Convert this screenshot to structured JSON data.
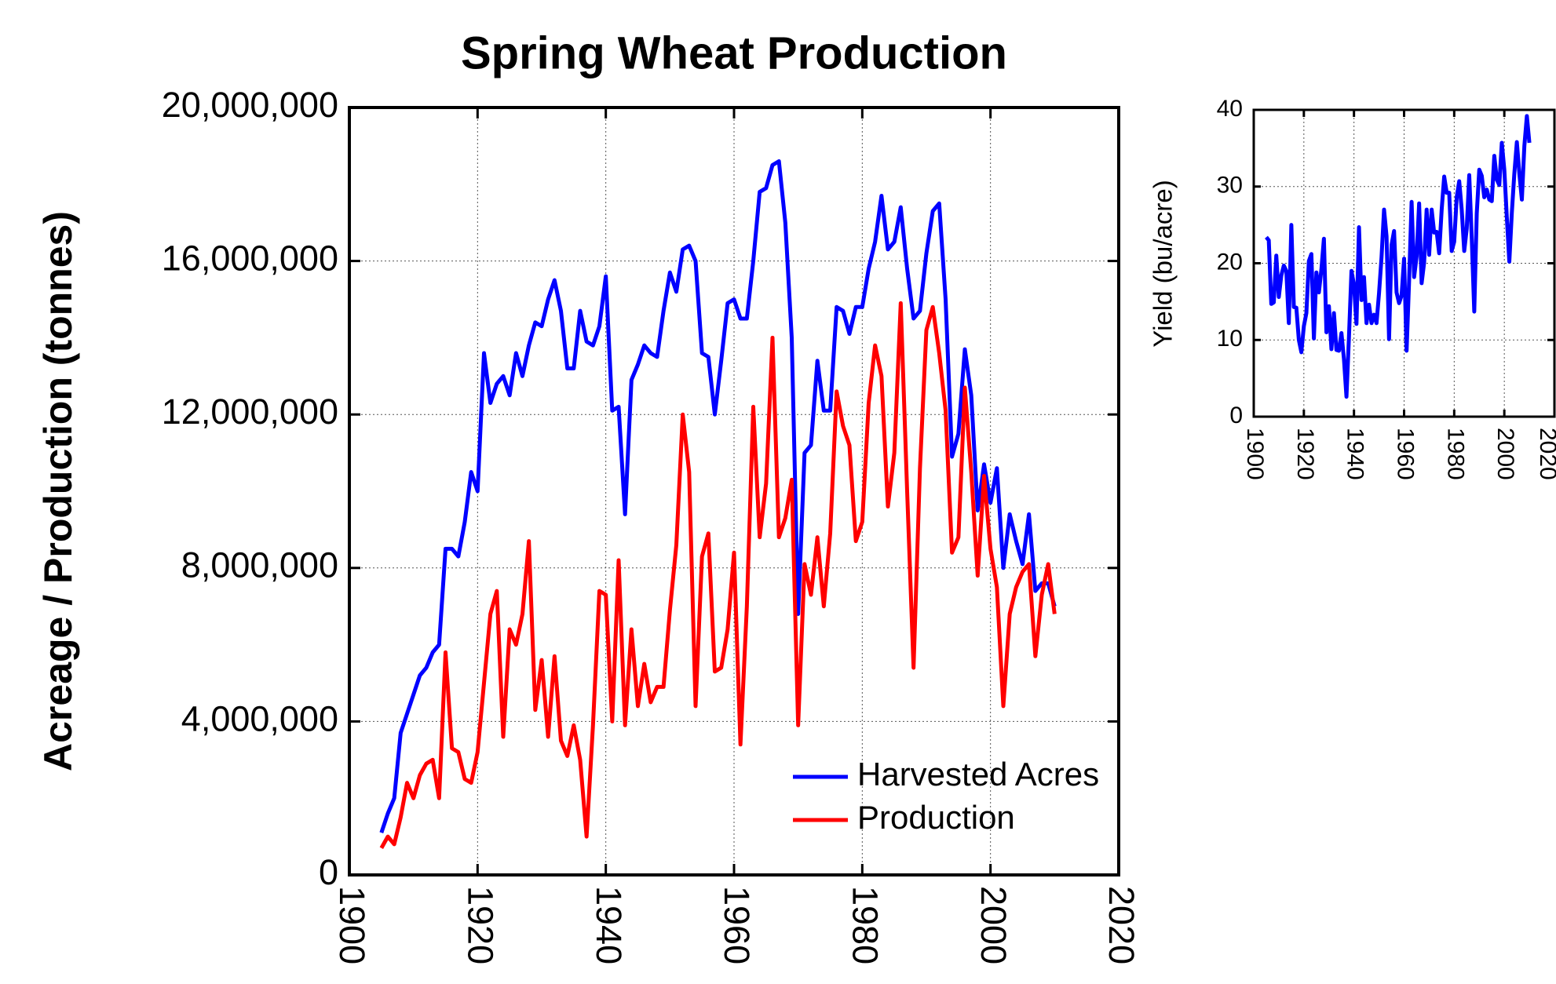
{
  "chart_data": [
    {
      "type": "line",
      "title": "Spring Wheat Production",
      "ylabel": "Acreage / Production (tonnes)",
      "x": [
        1905,
        1906,
        1907,
        1908,
        1909,
        1910,
        1911,
        1912,
        1913,
        1914,
        1915,
        1916,
        1917,
        1918,
        1919,
        1920,
        1921,
        1922,
        1923,
        1924,
        1925,
        1926,
        1927,
        1928,
        1929,
        1930,
        1931,
        1932,
        1933,
        1934,
        1935,
        1936,
        1937,
        1938,
        1939,
        1940,
        1941,
        1942,
        1943,
        1944,
        1945,
        1946,
        1947,
        1948,
        1949,
        1950,
        1951,
        1952,
        1953,
        1954,
        1955,
        1956,
        1957,
        1958,
        1959,
        1960,
        1961,
        1962,
        1963,
        1964,
        1965,
        1966,
        1967,
        1968,
        1969,
        1970,
        1971,
        1972,
        1973,
        1974,
        1975,
        1976,
        1977,
        1978,
        1979,
        1980,
        1981,
        1982,
        1983,
        1984,
        1985,
        1986,
        1987,
        1988,
        1989,
        1990,
        1991,
        1992,
        1993,
        1994,
        1995,
        1996,
        1997,
        1998,
        1999,
        2000,
        2001,
        2002,
        2003,
        2004,
        2005,
        2006,
        2007,
        2008,
        2009,
        2010
      ],
      "series": [
        {
          "name": "Harvested Acres",
          "color": "#0000ff",
          "values": [
            1100000,
            1600000,
            2000000,
            3700000,
            4200000,
            4700000,
            5200000,
            5400000,
            5800000,
            6000000,
            8500000,
            8500000,
            8300000,
            9200000,
            10500000,
            10000000,
            13600000,
            12300000,
            12800000,
            13000000,
            12500000,
            13600000,
            13000000,
            13800000,
            14400000,
            14300000,
            15000000,
            15500000,
            14700000,
            13200000,
            13200000,
            14700000,
            13900000,
            13800000,
            14300000,
            15600000,
            12100000,
            12200000,
            9400000,
            12900000,
            13300000,
            13800000,
            13600000,
            13500000,
            14700000,
            15700000,
            15200000,
            16300000,
            16400000,
            16000000,
            13600000,
            13500000,
            12000000,
            13400000,
            14900000,
            15000000,
            14500000,
            14500000,
            16000000,
            17800000,
            17900000,
            18500000,
            18600000,
            17000000,
            14000000,
            6800000,
            11000000,
            11200000,
            13400000,
            12100000,
            12100000,
            14800000,
            14700000,
            14100000,
            14800000,
            14800000,
            15800000,
            16500000,
            17700000,
            16300000,
            16500000,
            17400000,
            15800000,
            14500000,
            14700000,
            16200000,
            17300000,
            17500000,
            15000000,
            10900000,
            11500000,
            13700000,
            12500000,
            9500000,
            10700000,
            9700000,
            10600000,
            8000000,
            9400000,
            8700000,
            8100000,
            9400000,
            7400000,
            7600000,
            7600000,
            7000000
          ]
        },
        {
          "name": "Production",
          "color": "#ff0000",
          "values": [
            700000,
            1000000,
            800000,
            1500000,
            2400000,
            2000000,
            2600000,
            2900000,
            3000000,
            2000000,
            5800000,
            3300000,
            3200000,
            2500000,
            2400000,
            3200000,
            5000000,
            6800000,
            7400000,
            3600000,
            6400000,
            6000000,
            6800000,
            8700000,
            4300000,
            5600000,
            3600000,
            5700000,
            3500000,
            3100000,
            3900000,
            3000000,
            1000000,
            3900000,
            7400000,
            7300000,
            4000000,
            8200000,
            3900000,
            6400000,
            4400000,
            5500000,
            4500000,
            4900000,
            4900000,
            6900000,
            8600000,
            12000000,
            10500000,
            4400000,
            8300000,
            8900000,
            5300000,
            5400000,
            6400000,
            8400000,
            3400000,
            7000000,
            12200000,
            8800000,
            10200000,
            14000000,
            8800000,
            9300000,
            10300000,
            3900000,
            8100000,
            7300000,
            8800000,
            7000000,
            8900000,
            12600000,
            11700000,
            11200000,
            8700000,
            9200000,
            12300000,
            13800000,
            13000000,
            9600000,
            11000000,
            14900000,
            10000000,
            5400000,
            10600000,
            14200000,
            14800000,
            13600000,
            12100000,
            8400000,
            8800000,
            12700000,
            10500000,
            7800000,
            10400000,
            8500000,
            7500000,
            4400000,
            6800000,
            7500000,
            7900000,
            8100000,
            5700000,
            7300000,
            8100000,
            6800000
          ]
        }
      ],
      "xlim": [
        1900,
        2020
      ],
      "xticks": [
        1900,
        1920,
        1940,
        1960,
        1980,
        2000,
        2020
      ],
      "ylim": [
        0,
        20000000
      ],
      "yticks": [
        {
          "value": 0,
          "label": "0"
        },
        {
          "value": 4000000,
          "label": "4,000,000"
        },
        {
          "value": 8000000,
          "label": "8,000,000"
        },
        {
          "value": 12000000,
          "label": "12,000,000"
        },
        {
          "value": 16000000,
          "label": "16,000,000"
        },
        {
          "value": 20000000,
          "label": "20,000,000"
        }
      ],
      "grid": true,
      "legend": "lower right"
    },
    {
      "type": "line",
      "ylabel": "Yield (bu/acre)",
      "x": [
        1905,
        1906,
        1907,
        1908,
        1909,
        1910,
        1911,
        1912,
        1913,
        1914,
        1915,
        1916,
        1917,
        1918,
        1919,
        1920,
        1921,
        1922,
        1923,
        1924,
        1925,
        1926,
        1927,
        1928,
        1929,
        1930,
        1931,
        1932,
        1933,
        1934,
        1935,
        1936,
        1937,
        1938,
        1939,
        1940,
        1941,
        1942,
        1943,
        1944,
        1945,
        1946,
        1947,
        1948,
        1949,
        1950,
        1951,
        1952,
        1953,
        1954,
        1955,
        1956,
        1957,
        1958,
        1959,
        1960,
        1961,
        1962,
        1963,
        1964,
        1965,
        1966,
        1967,
        1968,
        1969,
        1970,
        1971,
        1972,
        1973,
        1974,
        1975,
        1976,
        1977,
        1978,
        1979,
        1980,
        1981,
        1982,
        1983,
        1984,
        1985,
        1986,
        1987,
        1988,
        1989,
        1990,
        1991,
        1992,
        1993,
        1994,
        1995,
        1996,
        1997,
        1998,
        1999,
        2000,
        2001,
        2002,
        2003,
        2004,
        2005,
        2006,
        2007,
        2008,
        2009,
        2010
      ],
      "color": "#0000ff",
      "values": [
        23.4,
        23,
        14.7,
        14.9,
        21,
        15.6,
        18.4,
        19.7,
        19,
        12.2,
        25,
        14.3,
        14.2,
        10,
        8.4,
        11.8,
        13.5,
        20.3,
        21.2,
        10.2,
        18.8,
        16.2,
        19.2,
        23.2,
        11,
        14.4,
        8.8,
        13.5,
        8.7,
        8.6,
        10.9,
        7.5,
        2.6,
        10.4,
        19,
        17.2,
        12.1,
        24.7,
        15.2,
        18.2,
        12.2,
        14.6,
        12.2,
        13.3,
        12.2,
        16.1,
        20.8,
        27,
        23.5,
        10.1,
        22.4,
        24.2,
        16.2,
        14.8,
        15.8,
        20.6,
        8.6,
        17.7,
        28,
        18.2,
        20.9,
        27.8,
        17.4,
        20.1,
        27,
        21.1,
        27,
        24,
        24.1,
        21.3,
        27,
        31.3,
        29.2,
        29.2,
        21.6,
        22.8,
        28.6,
        30.7,
        27,
        21.6,
        24.5,
        31.5,
        23.3,
        13.7,
        26.5,
        32.2,
        31.4,
        28.6,
        29.6,
        28.3,
        28.1,
        34,
        30.9,
        30.2,
        35.7,
        32.2,
        26,
        20.2,
        26.6,
        31.7,
        35.8,
        31.7,
        28.3,
        35.3,
        39.2,
        35.7
      ],
      "xlim": [
        1900,
        2020
      ],
      "xticks": [
        1900,
        1920,
        1940,
        1960,
        1980,
        2000,
        2020
      ],
      "ylim": [
        0,
        40
      ],
      "yticks": [
        0,
        10,
        20,
        30,
        40
      ],
      "grid": true
    }
  ]
}
